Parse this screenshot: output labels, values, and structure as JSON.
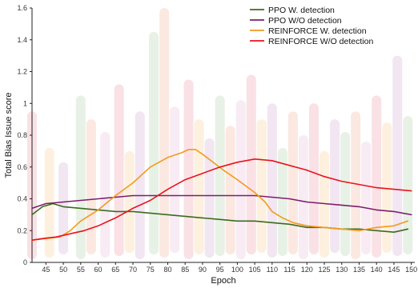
{
  "chart_data": {
    "type": "line",
    "xlabel": "Epoch",
    "ylabel": "Total Bias Issue score",
    "xlim": [
      41,
      151
    ],
    "ylim": [
      0,
      1.6
    ],
    "x_ticks": [
      45,
      50,
      55,
      60,
      65,
      70,
      75,
      80,
      85,
      90,
      95,
      100,
      105,
      110,
      115,
      120,
      125,
      130,
      135,
      140,
      145,
      150
    ],
    "y_ticks": [
      0,
      0.2,
      0.4,
      0.6,
      0.8,
      1,
      1.2,
      1.4,
      1.6
    ],
    "y_tick_labels": [
      "0",
      "0.2",
      "0.4",
      "0.6",
      "0.8",
      "1",
      "1.2",
      "1.4",
      "1.6"
    ],
    "legend_position": "top-right",
    "grid": false,
    "series": [
      {
        "name": "PPO W. detection",
        "color": "#3a6b1f",
        "points": [
          [
            41,
            0.3
          ],
          [
            44,
            0.35
          ],
          [
            47,
            0.37
          ],
          [
            50,
            0.35
          ],
          [
            55,
            0.34
          ],
          [
            60,
            0.33
          ],
          [
            65,
            0.32
          ],
          [
            70,
            0.32
          ],
          [
            75,
            0.31
          ],
          [
            80,
            0.3
          ],
          [
            85,
            0.29
          ],
          [
            90,
            0.28
          ],
          [
            95,
            0.27
          ],
          [
            100,
            0.26
          ],
          [
            105,
            0.26
          ],
          [
            110,
            0.25
          ],
          [
            115,
            0.24
          ],
          [
            120,
            0.22
          ],
          [
            125,
            0.22
          ],
          [
            130,
            0.21
          ],
          [
            135,
            0.21
          ],
          [
            140,
            0.2
          ],
          [
            145,
            0.19
          ],
          [
            147,
            0.2
          ],
          [
            149,
            0.21
          ]
        ]
      },
      {
        "name": "PPO W/O detection",
        "color": "#7a1f6b",
        "points": [
          [
            41,
            0.34
          ],
          [
            45,
            0.37
          ],
          [
            50,
            0.38
          ],
          [
            55,
            0.39
          ],
          [
            60,
            0.4
          ],
          [
            65,
            0.41
          ],
          [
            70,
            0.42
          ],
          [
            75,
            0.42
          ],
          [
            80,
            0.42
          ],
          [
            85,
            0.42
          ],
          [
            90,
            0.42
          ],
          [
            95,
            0.42
          ],
          [
            100,
            0.42
          ],
          [
            105,
            0.42
          ],
          [
            110,
            0.41
          ],
          [
            115,
            0.4
          ],
          [
            120,
            0.38
          ],
          [
            125,
            0.37
          ],
          [
            130,
            0.36
          ],
          [
            135,
            0.35
          ],
          [
            140,
            0.33
          ],
          [
            145,
            0.32
          ],
          [
            150,
            0.3
          ]
        ]
      },
      {
        "name": "REINFORCE W. detection",
        "color": "#f39a1c",
        "points": [
          [
            41,
            0.14
          ],
          [
            45,
            0.15
          ],
          [
            49,
            0.16
          ],
          [
            52,
            0.2
          ],
          [
            55,
            0.26
          ],
          [
            60,
            0.33
          ],
          [
            65,
            0.42
          ],
          [
            70,
            0.5
          ],
          [
            75,
            0.6
          ],
          [
            80,
            0.66
          ],
          [
            84,
            0.69
          ],
          [
            86,
            0.71
          ],
          [
            88,
            0.71
          ],
          [
            90,
            0.68
          ],
          [
            93,
            0.63
          ],
          [
            96,
            0.58
          ],
          [
            100,
            0.52
          ],
          [
            105,
            0.44
          ],
          [
            108,
            0.38
          ],
          [
            110,
            0.32
          ],
          [
            113,
            0.28
          ],
          [
            116,
            0.25
          ],
          [
            120,
            0.23
          ],
          [
            125,
            0.22
          ],
          [
            130,
            0.21
          ],
          [
            135,
            0.2
          ],
          [
            140,
            0.22
          ],
          [
            145,
            0.23
          ],
          [
            149,
            0.26
          ]
        ]
      },
      {
        "name": "REINFORCE W/O detection",
        "color": "#e8141e",
        "points": [
          [
            41,
            0.14
          ],
          [
            44,
            0.15
          ],
          [
            48,
            0.16
          ],
          [
            52,
            0.18
          ],
          [
            56,
            0.2
          ],
          [
            60,
            0.23
          ],
          [
            65,
            0.28
          ],
          [
            70,
            0.34
          ],
          [
            75,
            0.39
          ],
          [
            80,
            0.46
          ],
          [
            85,
            0.52
          ],
          [
            90,
            0.56
          ],
          [
            95,
            0.6
          ],
          [
            100,
            0.63
          ],
          [
            105,
            0.65
          ],
          [
            110,
            0.64
          ],
          [
            115,
            0.61
          ],
          [
            120,
            0.58
          ],
          [
            125,
            0.54
          ],
          [
            130,
            0.51
          ],
          [
            135,
            0.49
          ],
          [
            140,
            0.47
          ],
          [
            145,
            0.46
          ],
          [
            150,
            0.45
          ]
        ]
      }
    ]
  }
}
